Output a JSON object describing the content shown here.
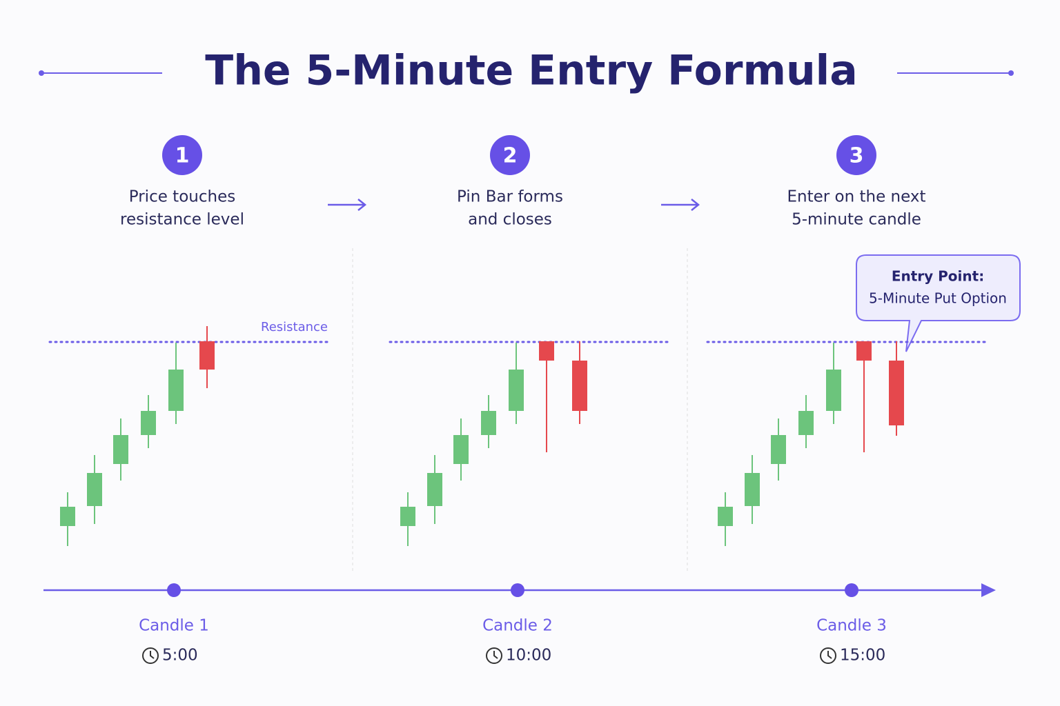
{
  "header": {
    "title": "The 5-Minute Entry Formula"
  },
  "steps": [
    {
      "number": "1",
      "lines": [
        "Price touches",
        "resistance level"
      ]
    },
    {
      "number": "2",
      "lines": [
        "Pin Bar forms",
        "and closes"
      ]
    },
    {
      "number": "3",
      "lines": [
        "Enter on the next",
        "5-minute candle"
      ]
    }
  ],
  "resistance_label": "Resistance",
  "callout": {
    "title": "Entry Point:",
    "text": "5-Minute Put Option"
  },
  "timeline": [
    {
      "label": "Candle 1",
      "time": "5:00"
    },
    {
      "label": "Candle 2",
      "time": "10:00"
    },
    {
      "label": "Candle 3",
      "time": "15:00"
    }
  ]
}
